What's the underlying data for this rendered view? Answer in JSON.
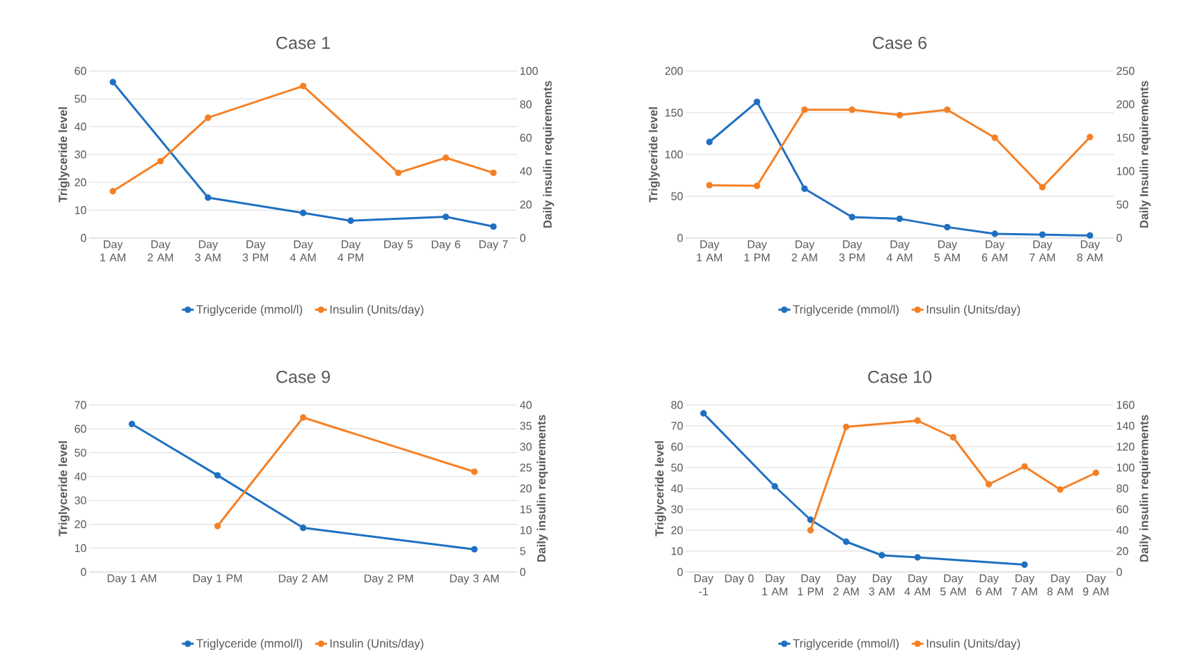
{
  "chart_data": [
    {
      "type": "line",
      "title": "Case 1",
      "ylabel": "Triglyceride level",
      "y2label": "Daily insulin requirements",
      "categories": [
        "Day 1 AM",
        "Day 2 AM",
        "Day 3 AM",
        "Day 3 PM",
        "Day 4 AM",
        "Day 4 PM",
        "Day 5",
        "Day 6",
        "Day 7"
      ],
      "series": [
        {
          "name": "Triglyceride (mmol/l)",
          "color": "#1f70c1",
          "values": [
            56,
            null,
            14.5,
            null,
            9,
            6.2,
            null,
            7.6,
            4.1
          ]
        },
        {
          "name": "Insulin (Units/day)",
          "color": "#f58025",
          "axis": "y2",
          "values": [
            28,
            46,
            72,
            null,
            91,
            null,
            39,
            48,
            39
          ]
        }
      ],
      "ylim": [
        0,
        60
      ],
      "yticks": [
        0,
        10,
        20,
        30,
        40,
        50,
        60
      ],
      "y2lim": [
        0,
        100
      ],
      "y2ticks": [
        0,
        20,
        40,
        60,
        80,
        100
      ],
      "grid": "y",
      "legend": "bottom",
      "marker": "circle",
      "line_style": "solid"
    },
    {
      "type": "line",
      "title": "Case 6",
      "ylabel": "Triglyceride level",
      "y2label": "Daily Insulin requirements",
      "categories": [
        "Day 1 AM",
        "Day 1 PM",
        "Day 2 AM",
        "Day 3 PM",
        "Day 4 AM",
        "Day 5 AM",
        "Day 6 AM",
        "Day 7 AM",
        "Day 8 AM"
      ],
      "series": [
        {
          "name": "Triglyceride (mmol/l)",
          "color": "#1f70c1",
          "values": [
            115,
            163,
            59,
            25,
            23,
            13,
            5,
            4,
            3
          ]
        },
        {
          "name": "Insulin (Units/day)",
          "color": "#f58025",
          "axis": "y2",
          "values": [
            79,
            78,
            192,
            192,
            184,
            192,
            150,
            76,
            151
          ]
        }
      ],
      "ylim": [
        0,
        200
      ],
      "yticks": [
        0,
        50,
        100,
        150,
        200
      ],
      "y2lim": [
        0,
        250
      ],
      "y2ticks": [
        0,
        50,
        100,
        150,
        200,
        250
      ],
      "grid": "y",
      "legend": "bottom",
      "marker": "circle",
      "line_style": "solid"
    },
    {
      "type": "line",
      "title": "Case 9",
      "ylabel": "Triglyceride level",
      "y2label": "Daily insulin requirements",
      "categories": [
        "Day 1 AM",
        "Day 1 PM",
        "Day 2 AM",
        "Day 2 PM",
        "Day 3 AM"
      ],
      "series": [
        {
          "name": "Triglyceride (mmol/l)",
          "color": "#1f70c1",
          "values": [
            62,
            40.5,
            18.5,
            null,
            9.5
          ]
        },
        {
          "name": "Insulin (Units/day)",
          "color": "#f58025",
          "axis": "y2",
          "values": [
            null,
            11,
            37,
            null,
            24
          ]
        }
      ],
      "ylim": [
        0,
        70
      ],
      "yticks": [
        0,
        10,
        20,
        30,
        40,
        50,
        60,
        70
      ],
      "y2lim": [
        0,
        40
      ],
      "y2ticks": [
        0,
        5,
        10,
        15,
        20,
        25,
        30,
        35,
        40
      ],
      "grid": "y",
      "legend": "bottom",
      "marker": "circle",
      "line_style": "solid"
    },
    {
      "type": "line",
      "title": "Case 10",
      "ylabel": "Triglyceride level",
      "y2label": "Daily insulin requirements",
      "categories": [
        "Day -1",
        "Day 0",
        "Day 1 AM",
        "Day 1 PM",
        "Day 2 AM",
        "Day 3 AM",
        "Day 4 AM",
        "Day 5 AM",
        "Day 6 AM",
        "Day 7 AM",
        "Day 8 AM",
        "Day 9 AM"
      ],
      "series": [
        {
          "name": "Triglyceride (mmol/l)",
          "color": "#1f70c1",
          "values": [
            76,
            null,
            41,
            25,
            14.5,
            8,
            7,
            null,
            null,
            3.5,
            null,
            null
          ]
        },
        {
          "name": "Insulin (Units/day)",
          "color": "#f58025",
          "axis": "y2",
          "values": [
            null,
            null,
            null,
            40,
            139,
            null,
            145,
            129,
            84,
            101,
            79,
            95
          ]
        }
      ],
      "ylim": [
        0,
        80
      ],
      "yticks": [
        0,
        10,
        20,
        30,
        40,
        50,
        60,
        70,
        80
      ],
      "y2lim": [
        0,
        160
      ],
      "y2ticks": [
        0,
        20,
        40,
        60,
        80,
        100,
        120,
        140,
        160
      ],
      "grid": "y",
      "legend": "bottom",
      "marker": "circle",
      "line_style": "solid"
    }
  ]
}
